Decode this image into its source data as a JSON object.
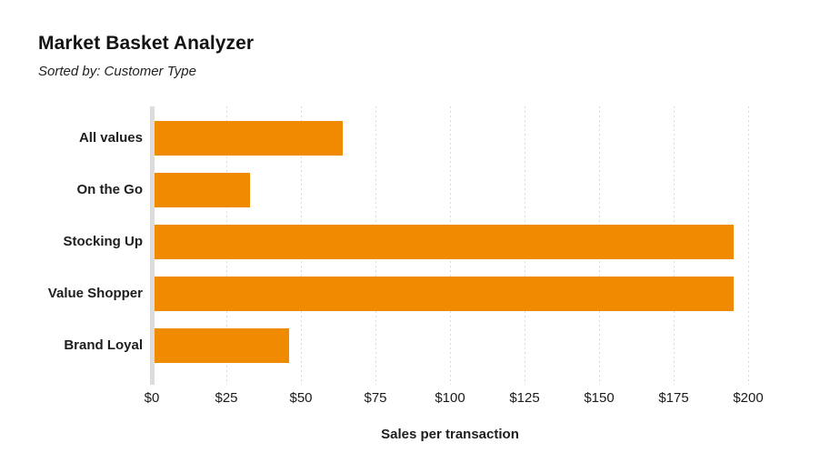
{
  "header": {
    "title": "Market Basket Analyzer",
    "subtitle": "Sorted by: Customer Type"
  },
  "chart_data": {
    "type": "bar",
    "orientation": "horizontal",
    "title": "Market Basket Analyzer",
    "subtitle": "Sorted by: Customer Type",
    "categories": [
      "All values",
      "On the Go",
      "Stocking Up",
      "Value Shopper",
      "Brand Loyal"
    ],
    "values": [
      64,
      33,
      195,
      195,
      46
    ],
    "xlabel": "Sales per transaction",
    "ylabel": "",
    "xlim": [
      0,
      200
    ],
    "x_tick_step": 25,
    "x_tick_labels": [
      "$0",
      "$25",
      "$50",
      "$75",
      "$100",
      "$125",
      "$150",
      "$175",
      "$200"
    ],
    "grid": "vertical-dotted",
    "legend": "none",
    "colors": {
      "bar": "#F08A00",
      "gridline": "#d9d9d9",
      "zero_axis": "#dcdcdc",
      "text": "#1e1e1e"
    }
  }
}
